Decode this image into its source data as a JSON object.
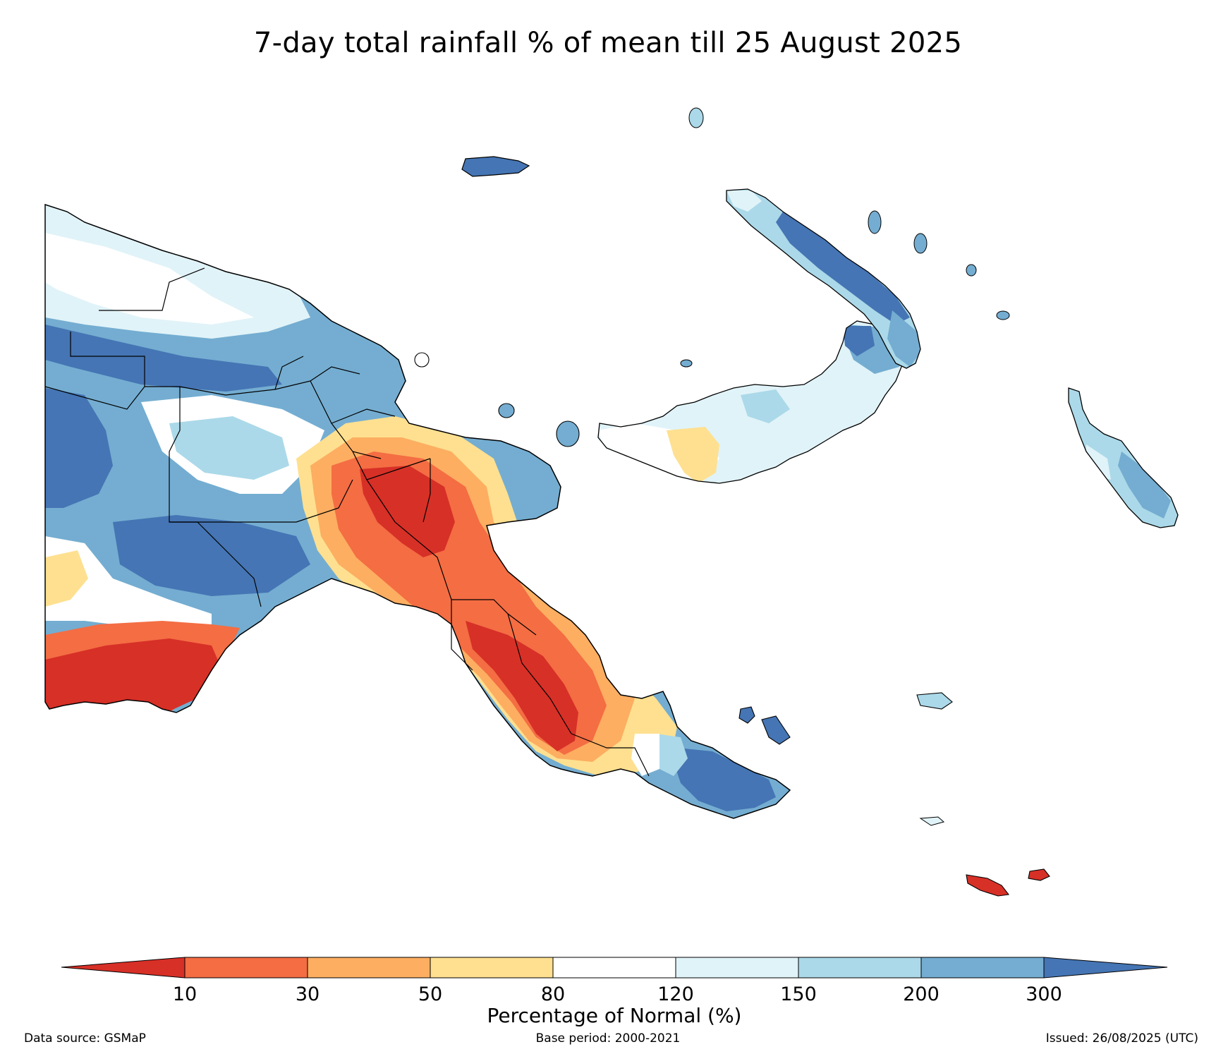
{
  "title": "7-day total rainfall % of mean till 25 August 2025",
  "colorbar": {
    "label": "Percentage of Normal (%)",
    "ticks": [
      "10",
      "30",
      "50",
      "80",
      "120",
      "150",
      "200",
      "300"
    ],
    "extend": "both",
    "colors": {
      "below_10": "#d73027",
      "10_30": "#f46d43",
      "30_50": "#fdae61",
      "50_80": "#fee090",
      "80_120": "#ffffff",
      "120_150": "#e0f3f8",
      "150_200": "#abd9e9",
      "200_300": "#74add1",
      "above_300": "#4575b4"
    }
  },
  "footer": {
    "source": "Data source: GSMaP",
    "base_period": "Base period: 2000-2021",
    "issued": "Issued: 26/08/2025 (UTC)"
  }
}
